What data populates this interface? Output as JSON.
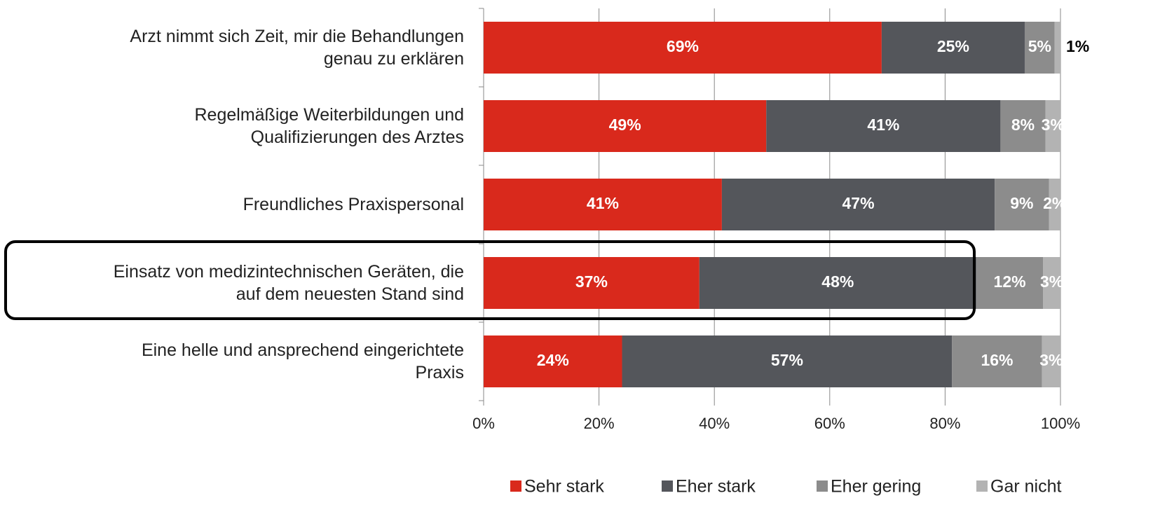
{
  "chart_data": {
    "type": "stacked_barh",
    "categories": [
      "Arzt nimmt sich Zeit, mir die Behandlungen\ngenau zu erklären",
      "Regelmäßige Weiterbildungen und\nQualifizierungen des Arztes",
      "Freundliches Praxispersonal",
      "Einsatz von medizintechnischen Geräten, die\nauf dem neuesten Stand sind",
      "Eine helle und ansprechend eingerichtete\nPraxis"
    ],
    "series": [
      {
        "name": "Sehr stark",
        "color": "#d9291c",
        "values": [
          69,
          49,
          41.3,
          37.4,
          24
        ],
        "value_labels": [
          "69%",
          "49%",
          "41%",
          "37%",
          "24%"
        ]
      },
      {
        "name": "Eher stark",
        "color": "#54565b",
        "values": [
          24.8,
          40.6,
          47.3,
          48,
          57.2
        ],
        "value_labels": [
          "25%",
          "41%",
          "47%",
          "48%",
          "57%"
        ]
      },
      {
        "name": "Eher gering",
        "color": "#8c8c8c",
        "values": [
          5.2,
          7.8,
          9.4,
          11.6,
          15.6
        ],
        "value_labels": [
          "5%",
          "8%",
          "9%",
          "12%",
          "16%"
        ]
      },
      {
        "name": "Gar nicht",
        "color": "#b3b3b3",
        "values": [
          1,
          2.6,
          2,
          3,
          3.2
        ],
        "value_labels": [
          "1%",
          "3%",
          "2%",
          "3%",
          "3%"
        ]
      }
    ],
    "xlim": [
      0,
      100
    ],
    "xticks": [
      {
        "value": 0,
        "label": "0%"
      },
      {
        "value": 20,
        "label": "20%"
      },
      {
        "value": 40,
        "label": "40%"
      },
      {
        "value": 60,
        "label": "60%"
      },
      {
        "value": 80,
        "label": "80%"
      },
      {
        "value": 100,
        "label": "100%"
      }
    ],
    "grid": true,
    "legend": "bottom"
  }
}
